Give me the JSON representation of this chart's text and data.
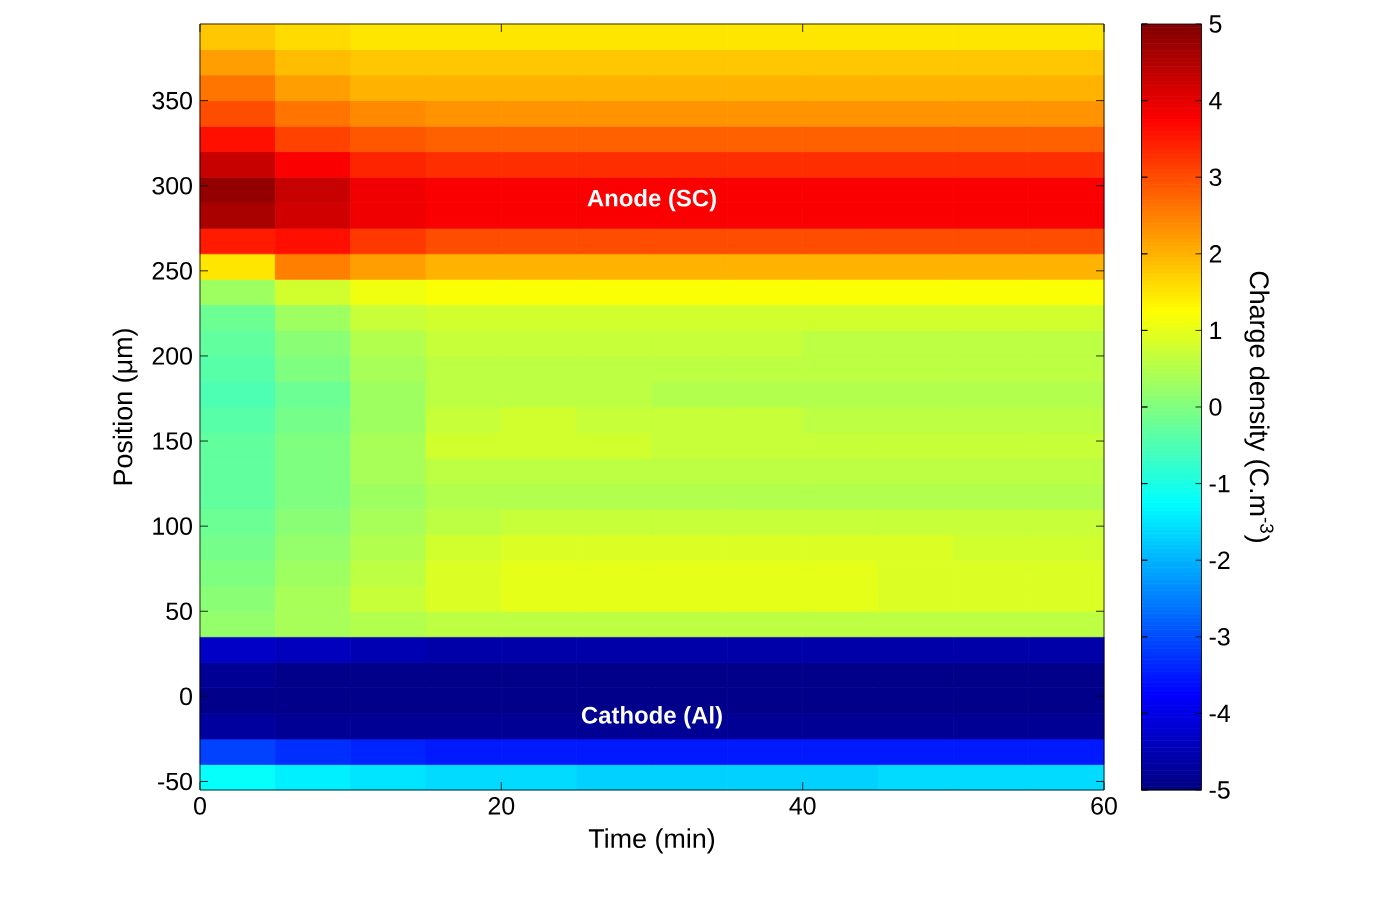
{
  "chart_data": {
    "type": "heatmap",
    "xlabel": "Time (min)",
    "ylabel": "Position (μm)",
    "clabel": "Charge density (C.m$^{-3}$)",
    "x": [
      2.5,
      7.5,
      12.5,
      17.5,
      22.5,
      27.5,
      32.5,
      37.5,
      42.5,
      47.5,
      52.5,
      57.5
    ],
    "y": [
      387.5,
      372.5,
      357.5,
      342.5,
      327.5,
      312.5,
      297.5,
      282.5,
      267.5,
      252.5,
      237.5,
      222.5,
      207.5,
      192.5,
      177.5,
      162.5,
      147.5,
      132.5,
      117.5,
      102.5,
      87.5,
      72.5,
      57.5,
      42.5,
      27.5,
      12.5,
      -2.5,
      -17.5,
      -32.5,
      -47.5
    ],
    "xlim": [
      0,
      60
    ],
    "ylim": [
      -55,
      395
    ],
    "xticks": [
      0,
      20,
      40,
      60
    ],
    "yticks": [
      -50,
      0,
      50,
      100,
      150,
      200,
      250,
      300,
      350
    ],
    "clim": [
      -5,
      5
    ],
    "cticks": [
      -5,
      -4,
      -3,
      -2,
      -1,
      0,
      1,
      2,
      3,
      4,
      5
    ],
    "cells": [
      [
        1.8,
        1.6,
        1.5,
        1.5,
        1.5,
        1.5,
        1.5,
        1.5,
        1.5,
        1.5,
        1.5,
        1.5
      ],
      [
        2.2,
        1.9,
        1.8,
        1.8,
        1.8,
        1.8,
        1.8,
        1.8,
        1.8,
        1.8,
        1.8,
        1.8
      ],
      [
        2.6,
        2.2,
        2.0,
        2.0,
        2.0,
        2.0,
        2.0,
        2.0,
        2.0,
        2.0,
        2.0,
        2.0
      ],
      [
        3.0,
        2.6,
        2.4,
        2.3,
        2.3,
        2.3,
        2.3,
        2.3,
        2.3,
        2.3,
        2.3,
        2.3
      ],
      [
        3.6,
        3.1,
        2.9,
        2.8,
        2.8,
        2.8,
        2.8,
        2.8,
        2.8,
        2.8,
        2.8,
        2.8
      ],
      [
        4.3,
        3.8,
        3.4,
        3.3,
        3.3,
        3.3,
        3.3,
        3.3,
        3.3,
        3.3,
        3.3,
        3.3
      ],
      [
        4.8,
        4.3,
        3.9,
        3.8,
        3.8,
        3.8,
        3.8,
        3.8,
        3.8,
        3.8,
        3.8,
        3.8
      ],
      [
        4.6,
        4.2,
        3.9,
        3.8,
        3.8,
        3.8,
        3.8,
        3.8,
        3.8,
        3.8,
        3.8,
        3.8
      ],
      [
        3.5,
        3.6,
        3.2,
        3.0,
        3.0,
        3.0,
        3.0,
        3.0,
        3.0,
        3.0,
        3.0,
        3.0
      ],
      [
        1.5,
        2.5,
        2.2,
        2.0,
        2.0,
        2.0,
        2.0,
        2.0,
        2.0,
        2.0,
        2.0,
        2.0
      ],
      [
        0.3,
        0.8,
        1.1,
        1.2,
        1.2,
        1.2,
        1.2,
        1.2,
        1.2,
        1.2,
        1.2,
        1.2
      ],
      [
        -0.2,
        0.3,
        0.7,
        0.8,
        0.8,
        0.8,
        0.8,
        0.8,
        0.8,
        0.8,
        0.8,
        0.8
      ],
      [
        -0.3,
        0.1,
        0.5,
        0.7,
        0.7,
        0.7,
        0.7,
        0.7,
        0.6,
        0.6,
        0.6,
        0.6
      ],
      [
        -0.4,
        0,
        0.4,
        0.6,
        0.6,
        0.6,
        0.6,
        0.6,
        0.6,
        0.6,
        0.6,
        0.6
      ],
      [
        -0.5,
        -0.2,
        0.3,
        0.6,
        0.6,
        0.6,
        0.5,
        0.5,
        0.5,
        0.5,
        0.5,
        0.5
      ],
      [
        -0.4,
        -0.1,
        0.3,
        0.7,
        0.8,
        0.7,
        0.7,
        0.7,
        0.6,
        0.6,
        0.6,
        0.6
      ],
      [
        -0.3,
        0,
        0.4,
        0.8,
        0.8,
        0.8,
        0.7,
        0.7,
        0.7,
        0.7,
        0.7,
        0.7
      ],
      [
        -0.3,
        0,
        0.4,
        0.6,
        0.6,
        0.6,
        0.6,
        0.6,
        0.6,
        0.6,
        0.6,
        0.6
      ],
      [
        -0.3,
        0,
        0.3,
        0.5,
        0.5,
        0.5,
        0.5,
        0.5,
        0.5,
        0.5,
        0.5,
        0.5
      ],
      [
        -0.2,
        0.1,
        0.4,
        0.6,
        0.7,
        0.7,
        0.7,
        0.7,
        0.7,
        0.7,
        0.7,
        0.7
      ],
      [
        -0.1,
        0.2,
        0.5,
        0.8,
        0.9,
        0.9,
        0.9,
        0.9,
        0.9,
        0.9,
        0.8,
        0.8
      ],
      [
        0,
        0.3,
        0.6,
        0.9,
        1.0,
        1.0,
        1.0,
        1.0,
        1.0,
        0.9,
        0.9,
        0.9
      ],
      [
        0.1,
        0.4,
        0.7,
        0.9,
        1.0,
        1.0,
        1.0,
        1.0,
        1.0,
        0.9,
        0.9,
        0.9
      ],
      [
        0.2,
        0.4,
        0.5,
        0.6,
        0.6,
        0.6,
        0.6,
        0.6,
        0.6,
        0.6,
        0.6,
        0.6
      ],
      [
        -4.3,
        -4.4,
        -4.5,
        -4.6,
        -4.6,
        -4.6,
        -4.6,
        -4.6,
        -4.6,
        -4.6,
        -4.6,
        -4.6
      ],
      [
        -4.8,
        -4.9,
        -4.9,
        -4.9,
        -4.9,
        -4.9,
        -4.9,
        -4.9,
        -4.9,
        -4.9,
        -4.9,
        -4.9
      ],
      [
        -4.9,
        -4.9,
        -4.9,
        -4.9,
        -4.9,
        -4.9,
        -4.9,
        -4.9,
        -4.9,
        -4.9,
        -4.9,
        -4.9
      ],
      [
        -4.7,
        -4.8,
        -4.8,
        -4.8,
        -4.8,
        -4.8,
        -4.8,
        -4.8,
        -4.8,
        -4.8,
        -4.8,
        -4.8
      ],
      [
        -3.1,
        -3.3,
        -3.4,
        -3.5,
        -3.5,
        -3.5,
        -3.5,
        -3.5,
        -3.5,
        -3.5,
        -3.5,
        -3.5
      ],
      [
        -1.2,
        -1.4,
        -1.5,
        -1.6,
        -1.6,
        -1.7,
        -1.7,
        -1.7,
        -1.7,
        -1.6,
        -1.6,
        -1.6
      ]
    ],
    "annotations": [
      "Anode (SC)",
      "Cathode (Al)"
    ]
  }
}
